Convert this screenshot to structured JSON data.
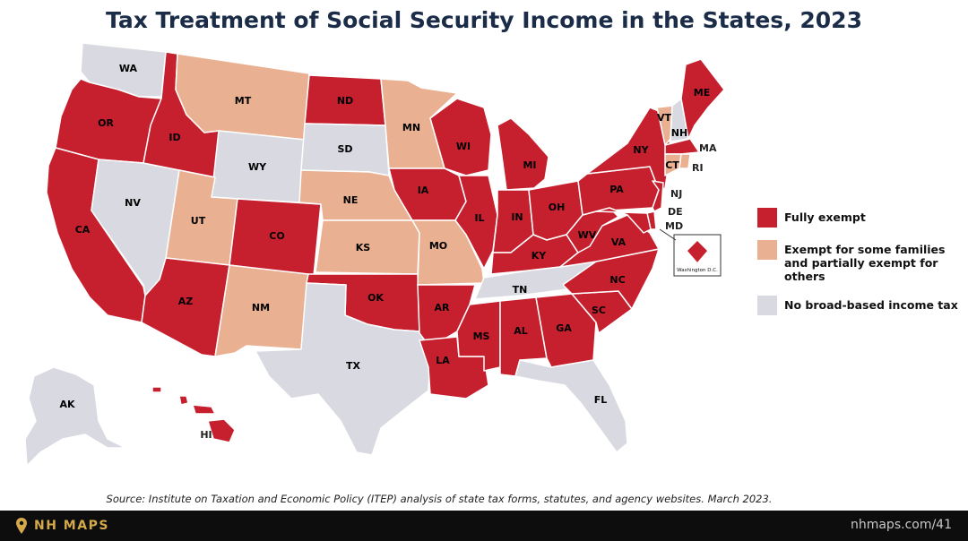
{
  "title": "Tax Treatment of Social Security Income in the States, 2023",
  "colors": {
    "fully_exempt": "#c6202f",
    "partial": "#e9b191",
    "no_tax": "#d8d9e1",
    "title": "#1a2c47",
    "footer_bg": "#0d0d0d",
    "brand": "#d4a94a"
  },
  "legend": [
    {
      "key": "fully_exempt",
      "label": "Fully exempt"
    },
    {
      "key": "partial",
      "label": "Exempt for some families and partially exempt for others"
    },
    {
      "key": "no_tax",
      "label": "No broad-based income tax"
    }
  ],
  "states": {
    "WA": "no_tax",
    "OR": "fully_exempt",
    "CA": "fully_exempt",
    "NV": "no_tax",
    "ID": "fully_exempt",
    "MT": "partial",
    "WY": "no_tax",
    "UT": "partial",
    "AZ": "fully_exempt",
    "CO": "fully_exempt",
    "NM": "partial",
    "ND": "fully_exempt",
    "SD": "no_tax",
    "NE": "partial",
    "KS": "partial",
    "OK": "fully_exempt",
    "TX": "no_tax",
    "MN": "partial",
    "IA": "fully_exempt",
    "MO": "partial",
    "AR": "fully_exempt",
    "LA": "fully_exempt",
    "WI": "fully_exempt",
    "IL": "fully_exempt",
    "MS": "fully_exempt",
    "MI": "fully_exempt",
    "IN": "fully_exempt",
    "KY": "fully_exempt",
    "TN": "no_tax",
    "AL": "fully_exempt",
    "OH": "fully_exempt",
    "WV": "fully_exempt",
    "GA": "fully_exempt",
    "FL": "no_tax",
    "SC": "fully_exempt",
    "NC": "fully_exempt",
    "VA": "fully_exempt",
    "PA": "fully_exempt",
    "NY": "fully_exempt",
    "VT": "partial",
    "NH": "no_tax",
    "ME": "fully_exempt",
    "MA": "fully_exempt",
    "RI": "partial",
    "CT": "partial",
    "NJ": "fully_exempt",
    "DE": "fully_exempt",
    "MD": "fully_exempt",
    "AK": "no_tax",
    "HI": "fully_exempt",
    "DC": "fully_exempt"
  },
  "dc_label": "Washington D.C.",
  "source": "Source: Institute on Taxation and Economic Policy (ITEP) analysis of state tax forms, statutes, and agency websites. March 2023.",
  "footer": {
    "brand": "NH MAPS",
    "url": "nhmaps.com/41"
  }
}
